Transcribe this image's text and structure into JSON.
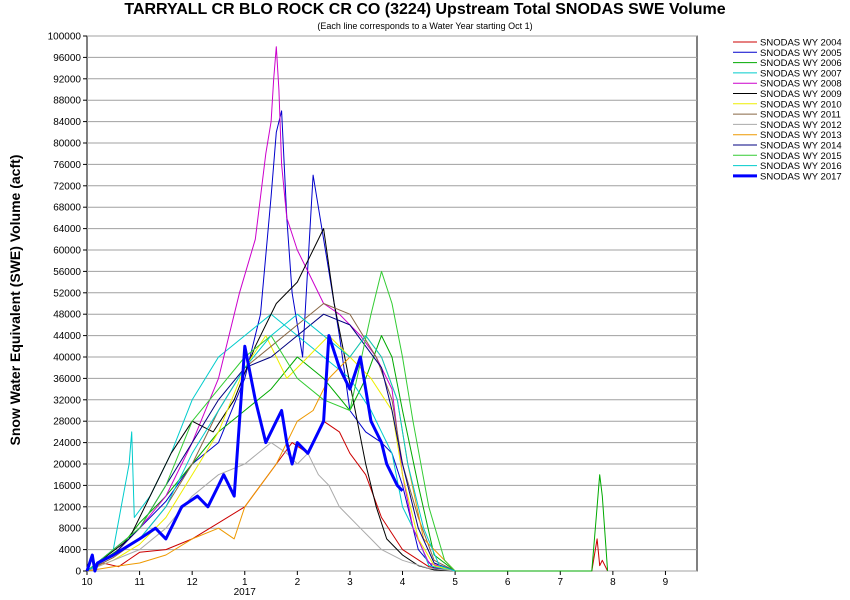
{
  "chart_data": {
    "type": "line",
    "title": "TARRYALL CR BLO ROCK CR CO (3224) Upstream Total SNODAS SWE Volume",
    "subtitle": "(Each line corresponds to a Water Year starting Oct 1)",
    "ylabel": "Snow Water Equivalent (SWE) Volume (acft)",
    "xlabel": "",
    "ylim": [
      0,
      100000
    ],
    "ytick_step": 4000,
    "x_tick_labels": [
      "10",
      "11",
      "12",
      "1",
      "2",
      "3",
      "4",
      "5",
      "6",
      "7",
      "8",
      "9"
    ],
    "x_year_label": "2017",
    "grid": true,
    "legend_position": "right",
    "series": [
      {
        "name": "SNODAS WY 2004",
        "color": "#cc0000",
        "width": 1,
        "x": [
          0,
          0.3,
          0.6,
          1.0,
          1.5,
          2.0,
          2.5,
          3.0,
          3.3,
          3.6,
          3.9,
          4.2,
          4.5,
          4.8,
          5.0,
          5.3,
          5.6,
          6.0,
          6.5,
          7.0,
          8.0,
          9.0,
          9.6,
          9.7,
          9.75,
          9.8,
          9.9
        ],
        "y": [
          0,
          1500,
          800,
          3500,
          4000,
          6000,
          9000,
          12000,
          16000,
          20000,
          24000,
          22000,
          28000,
          26000,
          22000,
          18000,
          10000,
          4000,
          800,
          0,
          0,
          0,
          0,
          6000,
          1000,
          2000,
          0
        ]
      },
      {
        "name": "SNODAS WY 2005",
        "color": "#0000cc",
        "width": 1,
        "x": [
          0,
          0.5,
          1.0,
          1.5,
          2.0,
          2.5,
          3.0,
          3.3,
          3.5,
          3.6,
          3.7,
          3.8,
          3.9,
          4.1,
          4.3,
          4.6,
          4.8,
          5.0,
          5.3,
          5.6,
          5.8,
          6.0,
          6.3,
          6.6,
          7.0
        ],
        "y": [
          0,
          4000,
          8000,
          13000,
          20000,
          24000,
          36000,
          48000,
          70000,
          82000,
          86000,
          66000,
          52000,
          40000,
          74000,
          56000,
          44000,
          30000,
          26000,
          24000,
          22000,
          16000,
          4000,
          500,
          0
        ]
      },
      {
        "name": "SNODAS WY 2006",
        "color": "#00aa00",
        "width": 1,
        "x": [
          0,
          0.3,
          0.6,
          1.0,
          1.5,
          2.0,
          2.5,
          3.0,
          3.5,
          4.0,
          4.5,
          5.0,
          5.3,
          5.6,
          5.8,
          6.0,
          6.3,
          6.6,
          7.0,
          9.6,
          9.7,
          9.75,
          9.8,
          9.9
        ],
        "y": [
          0,
          2000,
          4000,
          9000,
          14000,
          20000,
          26000,
          30000,
          34000,
          40000,
          36000,
          30000,
          36000,
          44000,
          40000,
          30000,
          16000,
          3000,
          0,
          0,
          12000,
          18000,
          14000,
          0
        ]
      },
      {
        "name": "SNODAS WY 2007",
        "color": "#00cccc",
        "width": 1,
        "x": [
          0,
          0.5,
          0.8,
          0.85,
          0.9,
          1.2,
          1.6,
          2.0,
          2.5,
          3.0,
          3.5,
          4.0,
          4.5,
          5.0,
          5.4,
          5.8,
          6.0,
          6.3,
          6.5,
          7.0
        ],
        "y": [
          0,
          4000,
          20000,
          26000,
          10000,
          14000,
          22000,
          32000,
          40000,
          44000,
          48000,
          44000,
          40000,
          36000,
          30000,
          22000,
          12000,
          6000,
          1000,
          0
        ]
      },
      {
        "name": "SNODAS WY 2008",
        "color": "#cc00cc",
        "width": 1,
        "x": [
          0,
          0.5,
          1.0,
          1.5,
          2.0,
          2.5,
          2.9,
          3.2,
          3.4,
          3.5,
          3.55,
          3.6,
          3.65,
          3.7,
          3.8,
          4.0,
          4.2,
          4.5,
          4.8,
          5.0,
          5.2,
          5.5,
          5.8,
          6.0,
          6.2,
          6.5,
          7.0
        ],
        "y": [
          0,
          3000,
          8000,
          14000,
          24000,
          36000,
          52000,
          62000,
          78000,
          84000,
          92000,
          98000,
          90000,
          76000,
          66000,
          60000,
          56000,
          50000,
          48000,
          46000,
          44000,
          40000,
          34000,
          18000,
          8000,
          1500,
          0
        ]
      },
      {
        "name": "SNODAS WY 2009",
        "color": "#000000",
        "width": 1,
        "x": [
          0,
          0.4,
          0.8,
          1.2,
          1.6,
          2.0,
          2.4,
          2.8,
          3.2,
          3.6,
          4.0,
          4.3,
          4.5,
          4.7,
          4.9,
          5.1,
          5.3,
          5.5,
          5.7,
          6.0,
          6.3,
          6.6,
          7.0
        ],
        "y": [
          0,
          3000,
          6000,
          14000,
          22000,
          28000,
          26000,
          32000,
          42000,
          50000,
          54000,
          60000,
          64000,
          50000,
          40000,
          30000,
          20000,
          12000,
          6000,
          3000,
          1000,
          200,
          0
        ]
      },
      {
        "name": "SNODAS WY 2010",
        "color": "#eeee00",
        "width": 1,
        "x": [
          0,
          0.5,
          1.0,
          1.5,
          2.0,
          2.5,
          3.0,
          3.4,
          3.8,
          4.2,
          4.6,
          5.0,
          5.4,
          5.8,
          6.0,
          6.3,
          6.6,
          7.0
        ],
        "y": [
          0,
          2000,
          5000,
          10000,
          18000,
          26000,
          38000,
          44000,
          36000,
          40000,
          44000,
          40000,
          36000,
          30000,
          18000,
          6000,
          1000,
          0
        ]
      },
      {
        "name": "SNODAS WY 2011",
        "color": "#886644",
        "width": 1,
        "x": [
          0,
          0.5,
          1.0,
          1.5,
          2.0,
          2.5,
          3.0,
          3.5,
          4.0,
          4.5,
          5.0,
          5.5,
          5.8,
          6.0,
          6.3,
          6.6,
          7.0
        ],
        "y": [
          0,
          2500,
          6000,
          12000,
          20000,
          30000,
          38000,
          42000,
          46000,
          50000,
          48000,
          40000,
          32000,
          20000,
          10000,
          2000,
          0
        ]
      },
      {
        "name": "SNODAS WY 2012",
        "color": "#aaaaaa",
        "width": 1,
        "x": [
          0,
          0.5,
          1.0,
          1.5,
          2.0,
          2.5,
          3.0,
          3.5,
          3.8,
          4.0,
          4.2,
          4.4,
          4.6,
          4.8,
          5.0,
          5.2,
          5.4,
          5.6,
          6.0,
          6.5,
          7.0
        ],
        "y": [
          0,
          2000,
          4000,
          8000,
          14000,
          18000,
          20000,
          24000,
          22000,
          20000,
          22000,
          18000,
          16000,
          12000,
          10000,
          8000,
          6000,
          4000,
          2000,
          500,
          0
        ]
      },
      {
        "name": "SNODAS WY 2013",
        "color": "#ee9900",
        "width": 1,
        "x": [
          0,
          0.5,
          1.0,
          1.5,
          2.0,
          2.5,
          2.8,
          3.0,
          3.3,
          3.6,
          4.0,
          4.3,
          4.6,
          5.0,
          5.3,
          5.6,
          5.9,
          6.1,
          6.4,
          7.0
        ],
        "y": [
          0,
          800,
          1500,
          3000,
          6000,
          8000,
          6000,
          12000,
          16000,
          20000,
          28000,
          30000,
          36000,
          40000,
          44000,
          40000,
          32000,
          20000,
          6000,
          0
        ]
      },
      {
        "name": "SNODAS WY 2014",
        "color": "#000080",
        "width": 1,
        "x": [
          0,
          0.5,
          1.0,
          1.5,
          2.0,
          2.5,
          3.0,
          3.5,
          4.0,
          4.5,
          5.0,
          5.3,
          5.6,
          5.8,
          6.0,
          6.3,
          6.6,
          7.0
        ],
        "y": [
          0,
          3000,
          8000,
          16000,
          24000,
          32000,
          38000,
          40000,
          44000,
          48000,
          46000,
          42000,
          38000,
          30000,
          20000,
          8000,
          1500,
          0
        ]
      },
      {
        "name": "SNODAS WY 2015",
        "color": "#33cc33",
        "width": 1,
        "x": [
          0,
          0.5,
          1.0,
          1.5,
          2.0,
          2.5,
          3.0,
          3.5,
          4.0,
          4.5,
          5.0,
          5.4,
          5.6,
          5.8,
          6.0,
          6.2,
          6.5,
          6.8,
          7.0
        ],
        "y": [
          0,
          4000,
          8000,
          16000,
          28000,
          34000,
          40000,
          44000,
          36000,
          32000,
          30000,
          48000,
          56000,
          50000,
          40000,
          28000,
          12000,
          2000,
          0
        ]
      },
      {
        "name": "SNODAS WY 2016",
        "color": "#00cccc",
        "width": 1,
        "x": [
          0,
          0.5,
          1.0,
          1.5,
          2.0,
          2.5,
          3.0,
          3.5,
          4.0,
          4.5,
          5.0,
          5.3,
          5.6,
          5.9,
          6.1,
          6.4,
          6.7,
          7.0
        ],
        "y": [
          0,
          3000,
          6000,
          12000,
          22000,
          30000,
          38000,
          44000,
          48000,
          44000,
          40000,
          44000,
          40000,
          32000,
          20000,
          8000,
          1000,
          0
        ]
      },
      {
        "name": "SNODAS WY 2017",
        "color": "#0000ff",
        "width": 3,
        "x": [
          0,
          0.1,
          0.15,
          0.2,
          0.5,
          1.0,
          1.3,
          1.5,
          1.8,
          2.1,
          2.3,
          2.5,
          2.6,
          2.7,
          2.8,
          3.0,
          3.2,
          3.4,
          3.6,
          3.7,
          3.8,
          3.9,
          4.0,
          4.2,
          4.4,
          4.5,
          4.6,
          4.8,
          5.0,
          5.2,
          5.3,
          5.4,
          5.6,
          5.7,
          5.8,
          5.9,
          6.0
        ],
        "y": [
          0,
          3000,
          0,
          1500,
          3000,
          6000,
          8000,
          6000,
          12000,
          14000,
          12000,
          16000,
          18000,
          16000,
          14000,
          42000,
          32000,
          24000,
          28000,
          30000,
          24000,
          20000,
          24000,
          22000,
          26000,
          28000,
          44000,
          38000,
          34000,
          40000,
          34000,
          28000,
          24000,
          20000,
          18000,
          16000,
          15000
        ]
      }
    ]
  }
}
